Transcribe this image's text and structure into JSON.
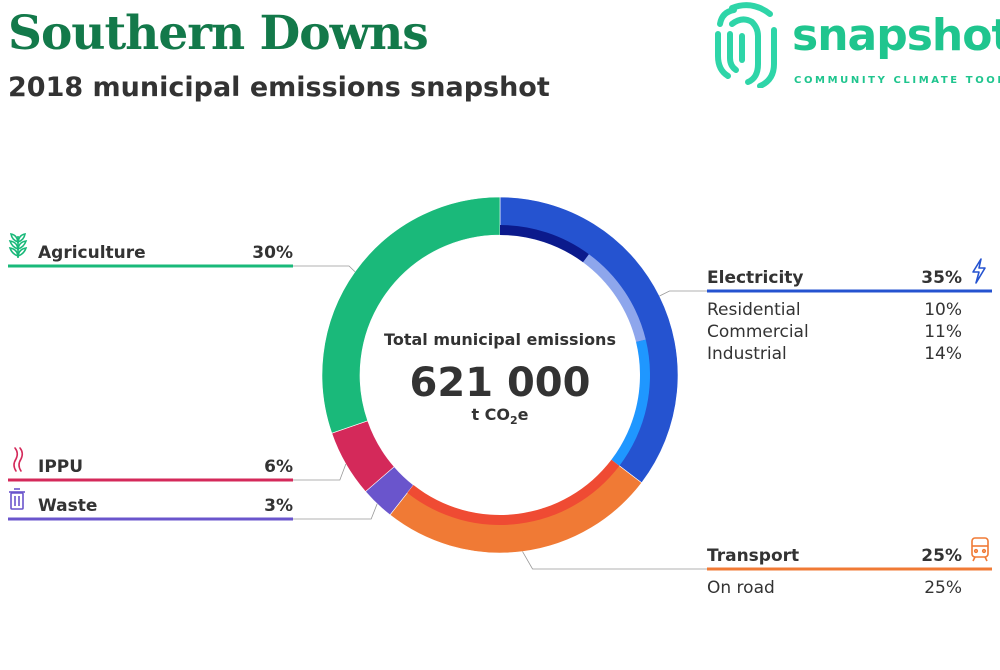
{
  "header": {
    "title": "Southern Downs",
    "subtitle": "2018 municipal emissions snapshot"
  },
  "logo": {
    "word": "snapshot",
    "tagline": "COMMUNITY CLIMATE TOOL",
    "color": "#1fc58e"
  },
  "center": {
    "label": "Total municipal emissions",
    "value": "621 000",
    "unit_prefix": "t CO",
    "unit_sub": "2",
    "unit_suffix": "e"
  },
  "chart_data": {
    "type": "pie",
    "title": "2018 municipal emissions snapshot",
    "total": 621000,
    "unit": "t CO2e",
    "sectors": [
      {
        "name": "Electricity",
        "pct_label": "35%",
        "value": 35,
        "color": "#2553d0",
        "icon": "lightning-icon",
        "sub": [
          {
            "name": "Residential",
            "pct_label": "10%",
            "value": 10,
            "color": "#0b1a8c"
          },
          {
            "name": "Commercial",
            "pct_label": "11%",
            "value": 11,
            "color": "#8ea6ec"
          },
          {
            "name": "Industrial",
            "pct_label": "14%",
            "value": 14,
            "color": "#1f97ff"
          }
        ]
      },
      {
        "name": "Transport",
        "pct_label": "25%",
        "value": 25,
        "color": "#f07a35",
        "icon": "train-icon",
        "sub": [
          {
            "name": "On road",
            "pct_label": "25%",
            "value": 25,
            "color": "#ef4b33"
          }
        ]
      },
      {
        "name": "Waste",
        "pct_label": "3%",
        "value": 3,
        "color": "#6a55cc",
        "icon": "bin-icon",
        "sub": []
      },
      {
        "name": "IPPU",
        "pct_label": "6%",
        "value": 6,
        "color": "#d4295a",
        "icon": "smoke-icon",
        "sub": []
      },
      {
        "name": "Agriculture",
        "pct_label": "30%",
        "value": 30,
        "color": "#1ab97a",
        "icon": "wheat-icon",
        "sub": []
      }
    ]
  }
}
